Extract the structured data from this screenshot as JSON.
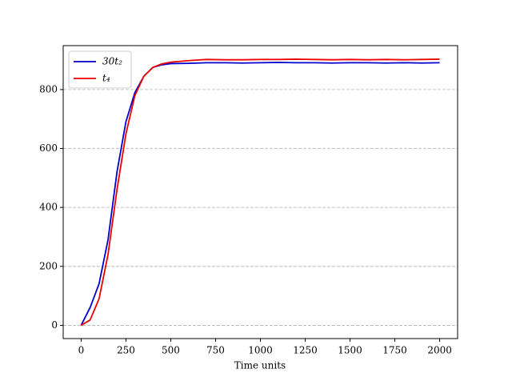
{
  "chart_data": {
    "type": "line",
    "xlabel": "Time units",
    "x": [
      0,
      50,
      100,
      150,
      200,
      250,
      300,
      350,
      400,
      450,
      500,
      600,
      700,
      800,
      900,
      1000,
      1100,
      1200,
      1300,
      1400,
      1500,
      1600,
      1700,
      1800,
      1900,
      2000
    ],
    "series": [
      {
        "name": "30t₂",
        "color": "#0000cc",
        "values": [
          0,
          60,
          141,
          290,
          520,
          691,
          790,
          845,
          875,
          884,
          888,
          889,
          891,
          891,
          890,
          891,
          892,
          891,
          891,
          890,
          891,
          891,
          890,
          891,
          890,
          891
        ]
      },
      {
        "name": "t₄",
        "color": "#ee0000",
        "values": [
          0,
          18,
          90,
          240,
          460,
          650,
          780,
          845,
          875,
          887,
          893,
          898,
          902,
          901,
          901,
          902,
          902,
          903,
          902,
          901,
          902,
          901,
          902,
          901,
          902,
          903
        ]
      }
    ],
    "xlim": [
      -100,
      2100
    ],
    "ylim": [
      -45,
      949
    ],
    "xticks": [
      0,
      250,
      500,
      750,
      1000,
      1250,
      1500,
      1750,
      2000
    ],
    "yticks": [
      0,
      200,
      400,
      600,
      800
    ],
    "grid": "y",
    "legend": "upper left"
  }
}
